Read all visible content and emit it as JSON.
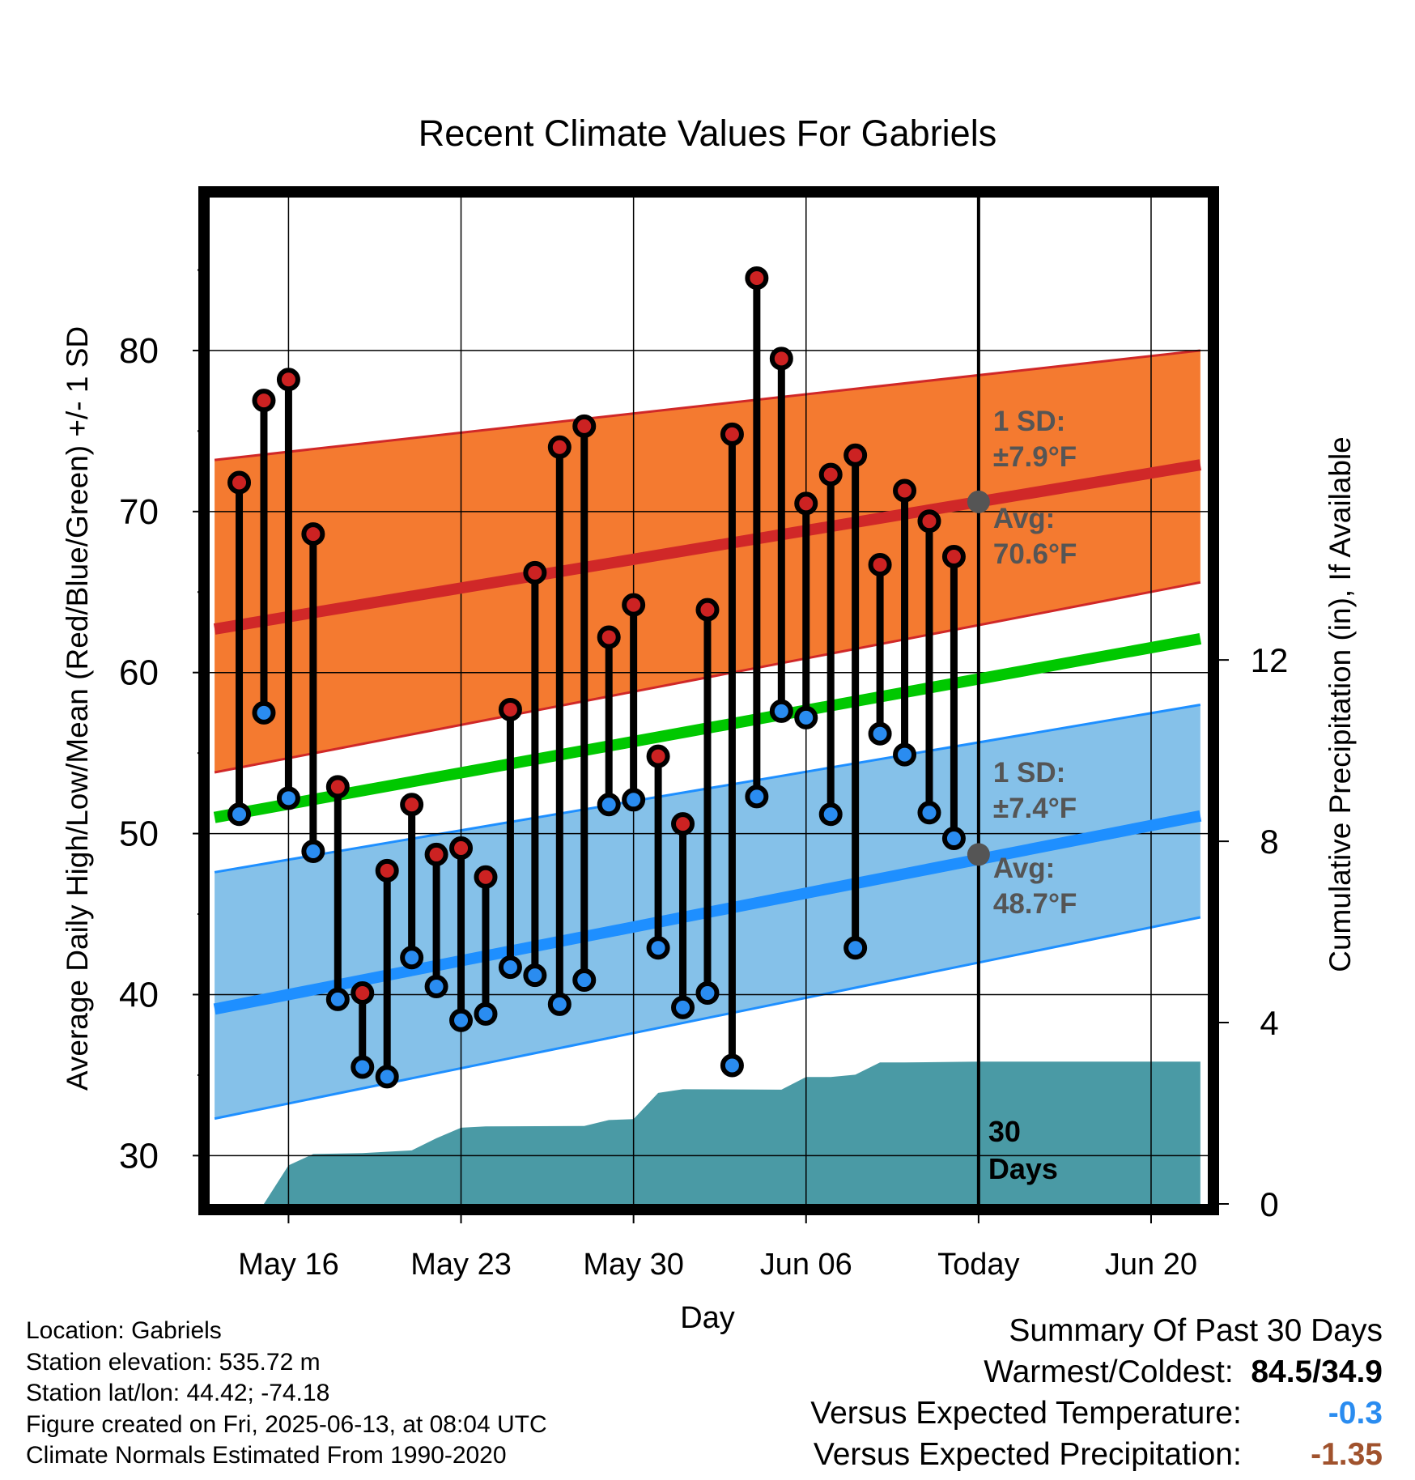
{
  "chart_data": {
    "type": "climate-range",
    "title": "Recent Climate Values For Gabriels",
    "xlabel": "Day",
    "ylabel": "Average Daily High/Low/Mean (Red/Blue/Green) +/- 1 SD",
    "y2label": "Cumulative Precipitation (in), If Available",
    "ylim": [
      27,
      89.5
    ],
    "y2lim": [
      0,
      22.2
    ],
    "yticks": [
      30,
      40,
      50,
      60,
      70,
      80
    ],
    "y2ticks": [
      0,
      4,
      8,
      12
    ],
    "xticks": [
      {
        "day": 2,
        "label": "May 16"
      },
      {
        "day": 9,
        "label": "May 23"
      },
      {
        "day": 16,
        "label": "May 30"
      },
      {
        "day": 23,
        "label": "Jun 06"
      },
      {
        "day": 30,
        "label": "Today"
      },
      {
        "day": 37,
        "label": "Jun 20"
      }
    ],
    "xlim": [
      -1.2,
      39.3
    ],
    "today_day": 30,
    "days": [
      0,
      1,
      2,
      3,
      4,
      5,
      6,
      7,
      8,
      9,
      10,
      11,
      12,
      13,
      14,
      15,
      16,
      17,
      18,
      19,
      20,
      21,
      22,
      23,
      24,
      25,
      26,
      27,
      28,
      29
    ],
    "highs": [
      71.8,
      76.9,
      78.2,
      68.6,
      52.9,
      40.1,
      47.7,
      51.8,
      48.7,
      49.1,
      47.3,
      57.7,
      66.2,
      74.0,
      75.3,
      62.2,
      64.2,
      54.8,
      50.6,
      63.9,
      74.8,
      84.5,
      79.5,
      70.5,
      72.3,
      73.5,
      66.7,
      71.3,
      69.4,
      67.2
    ],
    "lows": [
      51.2,
      57.5,
      52.2,
      48.9,
      39.7,
      35.5,
      34.9,
      42.3,
      40.5,
      38.4,
      38.8,
      41.7,
      41.2,
      39.4,
      40.9,
      51.8,
      52.1,
      42.9,
      39.2,
      40.1,
      35.6,
      52.3,
      57.6,
      57.2,
      51.2,
      42.9,
      56.2,
      54.9,
      51.3,
      49.7
    ],
    "normals": {
      "days": [
        -1,
        39
      ],
      "high_mean": [
        62.7,
        72.9
      ],
      "high_sd_lower": [
        53.8,
        65.6
      ],
      "high_sd_upper": [
        73.2,
        80.0
      ],
      "mean": [
        51.0,
        62.1
      ],
      "low_mean": [
        39.1,
        51.1
      ],
      "low_sd_lower": [
        32.3,
        44.8
      ],
      "low_sd_upper": [
        47.6,
        58.0
      ]
    },
    "precip_cumulative": {
      "days": [
        1,
        2,
        3,
        5,
        7,
        8,
        9,
        10,
        14,
        15,
        16,
        17,
        18,
        22,
        23,
        24,
        25,
        26,
        27,
        30,
        39
      ],
      "values": [
        0,
        0.85,
        1.1,
        1.12,
        1.18,
        1.45,
        1.68,
        1.71,
        1.72,
        1.85,
        1.87,
        2.45,
        2.53,
        2.52,
        2.8,
        2.8,
        2.85,
        3.12,
        3.12,
        3.14,
        3.14
      ]
    },
    "annotations": {
      "high_sd_label": "1 SD:",
      "high_sd_value": "±7.9°F",
      "high_avg_label": "Avg:",
      "high_avg_value": "70.6°F",
      "high_avg_today": 70.6,
      "low_sd_label": "1 SD:",
      "low_sd_value": "±7.4°F",
      "low_avg_label": "Avg:",
      "low_avg_value": "48.7°F",
      "low_avg_today": 48.7,
      "days_label_1": "30",
      "days_label_2": "Days"
    },
    "colors": {
      "high_band": "#f47a30",
      "high_line": "#d02828",
      "mean_line": "#00c800",
      "low_band": "#85c1e9",
      "low_line": "#1e8fff",
      "precip": "#4a9aa5",
      "high_dot": "#cc2222",
      "low_dot": "#2a8cf0",
      "avg_marker": "#555555",
      "annotation_text": "#555555"
    }
  },
  "station_info": {
    "location": "Location: Gabriels",
    "elevation": "Station elevation: 535.72 m",
    "latlon": "Station lat/lon: 44.42; -74.18",
    "created": "Figure created on Fri, 2025-06-13, at 08:04 UTC",
    "normals": "Climate Normals Estimated From 1990-2020"
  },
  "summary": {
    "title": "Summary Of Past 30 Days",
    "warmest_coldest_label": "Warmest/Coldest:",
    "warmest_coldest_value": "84.5/34.9",
    "temp_label": "Versus Expected Temperature:",
    "temp_value": "-0.3",
    "temp_color": "#2a8cf0",
    "precip_label": "Versus Expected Precipitation:",
    "precip_value": "-1.35",
    "precip_color": "#a0522d"
  }
}
